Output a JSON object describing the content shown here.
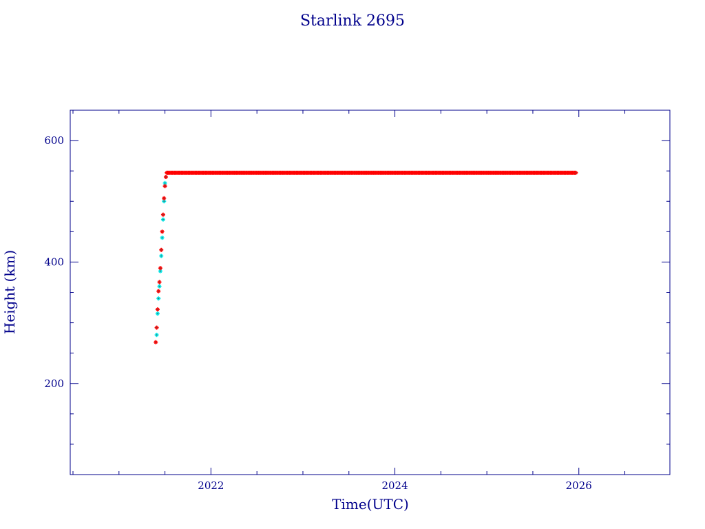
{
  "chart_data": {
    "type": "scatter",
    "title": "Starlink 2695",
    "xlabel": "Time(UTC)",
    "ylabel": "Height (km)",
    "xlim": [
      2020.47,
      2026.99
    ],
    "ylim": [
      50,
      650
    ],
    "x_ticks": [
      2022,
      2024,
      2026
    ],
    "x_tick_labels": [
      "2022",
      "2024",
      "2026"
    ],
    "y_ticks": [
      200,
      400,
      600
    ],
    "y_tick_labels": [
      "200",
      "400",
      "600"
    ],
    "x_minor_step": 0.5,
    "y_minor_step": 50,
    "grid": false,
    "legend": "none",
    "colors": {
      "axis": "#00008b",
      "raising": "#00e5e5",
      "operational": "#ff0000",
      "marker_center": "#555555"
    },
    "series": [
      {
        "color": "#00e5e5",
        "x": [
          2021.41,
          2021.42,
          2021.43,
          2021.44,
          2021.45,
          2021.46,
          2021.47,
          2021.48,
          2021.49,
          2021.5
        ],
        "y": [
          280,
          315,
          340,
          360,
          385,
          410,
          440,
          470,
          500,
          530
        ]
      },
      {
        "color": "#ff0000",
        "x": [
          2021.4,
          2021.41,
          2021.42,
          2021.43,
          2021.44,
          2021.45,
          2021.46,
          2021.47,
          2021.48,
          2021.49,
          2021.5,
          2021.51,
          2021.52
        ],
        "y": [
          268,
          292,
          322,
          352,
          367,
          390,
          420,
          450,
          478,
          505,
          525,
          540,
          547
        ]
      },
      {
        "color": "#ff0000",
        "x_start": 2021.53,
        "x_end": 2025.97,
        "x_step": 0.0125,
        "y_constant": 547
      }
    ]
  }
}
